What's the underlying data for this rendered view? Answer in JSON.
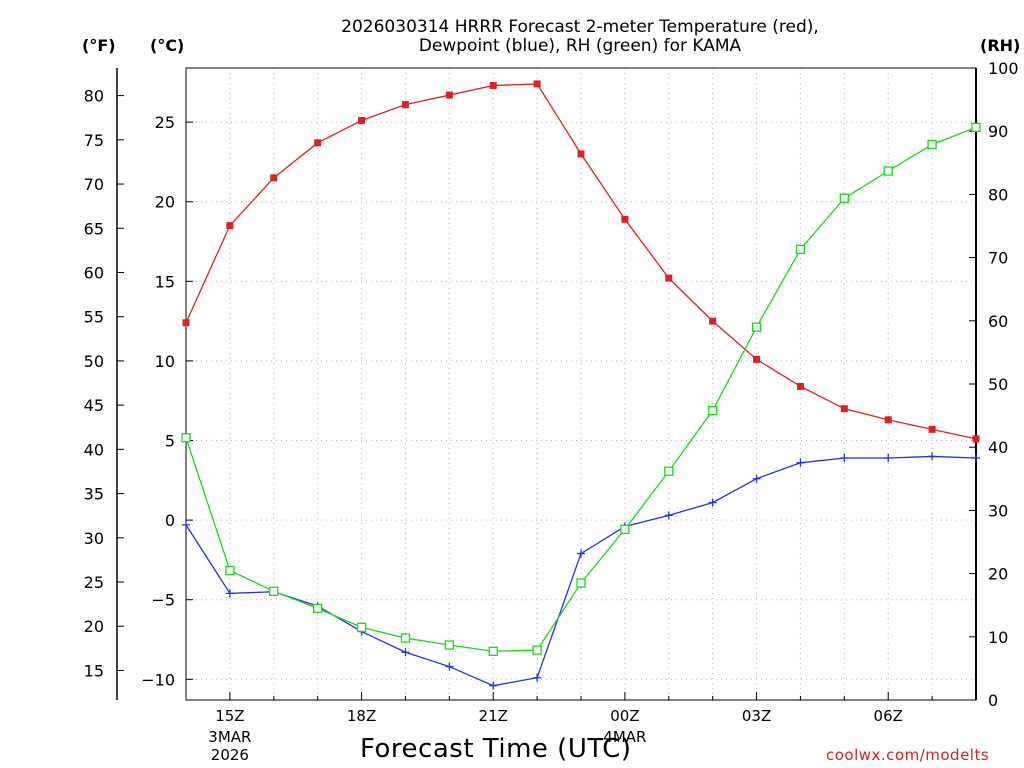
{
  "title": {
    "line1": "2026030314 HRRR Forecast 2-meter Temperature (red),",
    "line2": "Dewpoint (blue), RH (green) for KAMA"
  },
  "units": {
    "fahrenheit": "(°F)",
    "celsius": "(°C)",
    "rh": "(RH)"
  },
  "xlabel": "Forecast Time (UTC)",
  "credit": "coolwx.com/modelts",
  "colors": {
    "temperature": "#e02020",
    "dewpoint": "#2233dd",
    "rh": "#11dd11",
    "grid": "#b0b0b0",
    "axis": "#000000"
  },
  "chart_data": {
    "type": "line",
    "title": "2026030314 HRRR Forecast 2-meter Temperature (red), Dewpoint (blue), RH (green) for KAMA",
    "xlabel": "Forecast Time (UTC)",
    "x_hours": [
      14,
      15,
      16,
      17,
      18,
      19,
      20,
      21,
      22,
      23,
      24,
      25,
      26,
      27,
      28,
      29,
      30,
      31,
      32
    ],
    "x_range": [
      14,
      32
    ],
    "x_ticks": [
      {
        "hour": 15,
        "label": "15Z",
        "sub": [
          "3MAR",
          "2026"
        ]
      },
      {
        "hour": 18,
        "label": "18Z",
        "sub": []
      },
      {
        "hour": 21,
        "label": "21Z",
        "sub": []
      },
      {
        "hour": 24,
        "label": "00Z",
        "sub": [
          "4MAR"
        ]
      },
      {
        "hour": 27,
        "label": "03Z",
        "sub": []
      },
      {
        "hour": 30,
        "label": "06Z",
        "sub": []
      }
    ],
    "series": [
      {
        "name": "Temperature",
        "units": "C",
        "axis": "celsius",
        "marker": "filled-square",
        "values": [
          12.4,
          18.5,
          21.5,
          23.7,
          25.1,
          26.1,
          26.7,
          27.3,
          27.4,
          23.0,
          18.9,
          15.2,
          12.5,
          10.1,
          8.4,
          7.0,
          6.3,
          5.7,
          5.1
        ]
      },
      {
        "name": "Dewpoint",
        "units": "C",
        "axis": "celsius",
        "marker": "plus",
        "values": [
          -0.3,
          -4.6,
          -4.5,
          -5.4,
          -7.0,
          -8.3,
          -9.2,
          -10.4,
          -9.9,
          -2.1,
          -0.4,
          0.3,
          1.1,
          2.6,
          3.6,
          3.9,
          3.9,
          4.0,
          3.9
        ]
      },
      {
        "name": "RH",
        "units": "%",
        "axis": "rh",
        "marker": "open-square",
        "values": [
          41.5,
          20.5,
          17.2,
          14.5,
          11.5,
          9.8,
          8.7,
          7.7,
          7.9,
          18.5,
          27.0,
          36.2,
          45.8,
          59.0,
          71.3,
          79.4,
          83.7,
          87.9,
          90.6
        ]
      }
    ],
    "axes": {
      "celsius": {
        "range": [
          -11.3,
          28.4
        ],
        "ticks": [
          -10,
          -5,
          0,
          5,
          10,
          15,
          20,
          25
        ]
      },
      "fahrenheit": {
        "range": [
          11.66,
          83.12
        ],
        "ticks": [
          15,
          20,
          25,
          30,
          35,
          40,
          45,
          50,
          55,
          60,
          65,
          70,
          75,
          80
        ]
      },
      "rh": {
        "range": [
          0,
          100
        ],
        "ticks": [
          0,
          10,
          20,
          30,
          40,
          50,
          60,
          70,
          80,
          90,
          100
        ]
      }
    },
    "grid": true
  }
}
